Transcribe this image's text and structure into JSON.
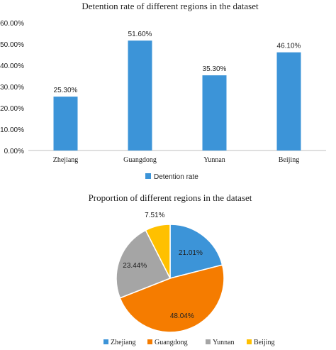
{
  "chart_data": [
    {
      "type": "bar",
      "title": "Detention rate of different regions in the dataset",
      "categories": [
        "Zhejiang",
        "Guangdong",
        "Yunnan",
        "Beijing"
      ],
      "series": [
        {
          "name": "Detention rate",
          "values": [
            25.3,
            51.6,
            35.3,
            46.1
          ]
        }
      ],
      "data_labels": [
        "25.30%",
        "51.60%",
        "35.30%",
        "46.10%"
      ],
      "y_ticks": [
        "0.00%",
        "10.00%",
        "20.00%",
        "30.00%",
        "40.00%",
        "50.00%",
        "60.00%"
      ],
      "ylim": [
        0,
        60
      ],
      "grid": false,
      "legend": "bottom",
      "color": "#3c94d8"
    },
    {
      "type": "pie",
      "title": "Proportion of different regions in the dataset",
      "labels": [
        "Zhejiang",
        "Guangdong",
        "Yunnan",
        "Beijing"
      ],
      "values": [
        21.01,
        48.04,
        23.44,
        7.51
      ],
      "data_labels": [
        "21.01%",
        "48.04%",
        "23.44%",
        "7.51%"
      ],
      "colors": [
        "#3c94d8",
        "#f57c00",
        "#a5a5a5",
        "#ffc000"
      ],
      "legend": "bottom"
    }
  ]
}
